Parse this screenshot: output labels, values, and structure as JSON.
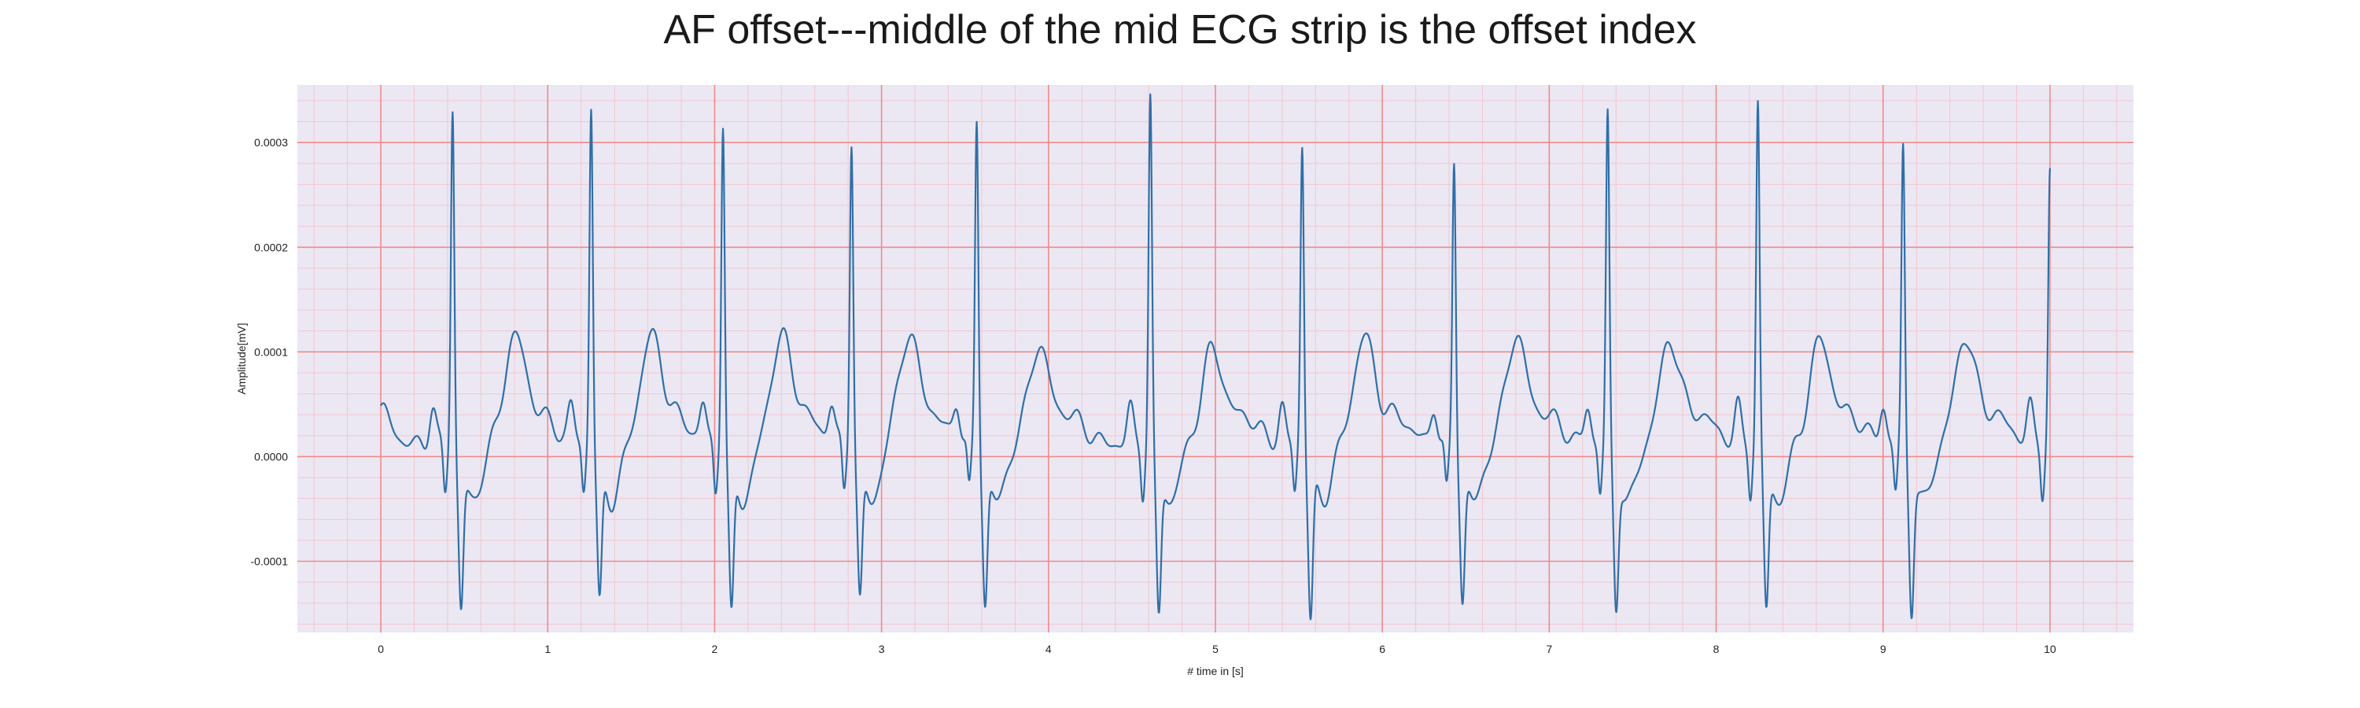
{
  "chart_data": {
    "type": "line",
    "title": "AF offset---middle of the mid ECG strip is the offset index",
    "xlabel": "# time in [s]",
    "ylabel": "Amplitude[mV]",
    "xlim": [
      -0.5,
      10.5
    ],
    "ylim": [
      -0.000168,
      0.000355
    ],
    "x_ticks": [
      0,
      1,
      2,
      3,
      4,
      5,
      6,
      7,
      8,
      9,
      10
    ],
    "x_tick_labels": [
      "0",
      "1",
      "2",
      "3",
      "4",
      "5",
      "6",
      "7",
      "8",
      "9",
      "10"
    ],
    "y_ticks": [
      -0.0001,
      0.0,
      0.0001,
      0.0002,
      0.0003
    ],
    "y_tick_labels": [
      "-0.0001",
      "0.0000",
      "0.0001",
      "0.0002",
      "0.0003"
    ],
    "grid": true,
    "grid_style": "ECG paper: red major grid, light pink minor grid",
    "colors": {
      "line": "#2f6fa8",
      "major_grid": "#f08a8a",
      "minor_grid": "#f3c6cf",
      "plot_background": "#ebe8f3"
    },
    "sample_rate_hz": 100,
    "x_start": 0.0,
    "x_end": 10.0,
    "beats": [
      {
        "r": 0.43,
        "peak": 0.000324,
        "trough": -0.000137,
        "t": 6.7e-05,
        "prev_qrs": 0.0
      },
      {
        "r": 1.26,
        "peak": 0.000328,
        "trough": -0.000132,
        "t": 6.5e-05,
        "prev_qrs": 0.43
      },
      {
        "r": 2.05,
        "peak": 0.000311,
        "trough": -0.000145,
        "t": 6.3e-05,
        "prev_qrs": 1.26
      },
      {
        "r": 2.82,
        "peak": 0.000296,
        "trough": -0.00013,
        "t": 6.3e-05,
        "prev_qrs": 2.05
      },
      {
        "r": 3.57,
        "peak": 0.000314,
        "trough": -0.000132,
        "t": 6e-05,
        "prev_qrs": 2.82
      },
      {
        "r": 4.61,
        "peak": 0.000333,
        "trough": -0.000143,
        "t": 5.8e-05,
        "prev_qrs": 3.57
      },
      {
        "r": 5.52,
        "peak": 0.00029,
        "trough": -0.000147,
        "t": 7e-05,
        "prev_qrs": 4.61
      },
      {
        "r": 6.43,
        "peak": 0.000275,
        "trough": -0.00013,
        "t": 7e-05,
        "prev_qrs": 5.52
      },
      {
        "r": 7.35,
        "peak": 0.000316,
        "trough": -0.000135,
        "t": 6.5e-05,
        "prev_qrs": 6.43
      },
      {
        "r": 8.25,
        "peak": 0.000328,
        "trough": -0.000137,
        "t": 6.5e-05,
        "prev_qrs": 7.35
      },
      {
        "r": 9.12,
        "peak": 0.000285,
        "trough": -0.000137,
        "t": 6.8e-05,
        "prev_qrs": 8.25
      },
      {
        "r": 10.0,
        "peak": 0.00026,
        "trough": 0.0,
        "t": 6e-05,
        "prev_qrs": 9.12
      }
    ],
    "start_value": 4.5e-05
  }
}
